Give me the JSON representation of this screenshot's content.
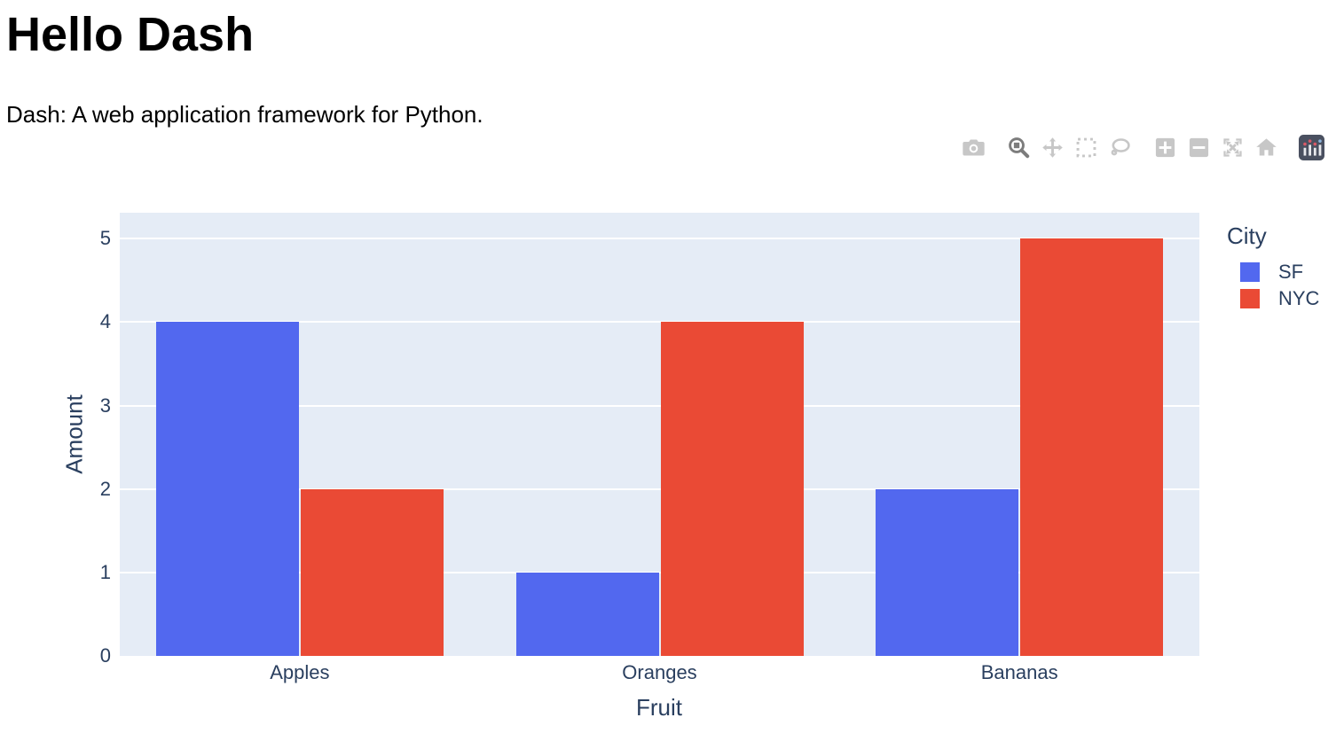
{
  "page": {
    "title": "Hello Dash",
    "subtitle": "Dash: A web application framework for Python."
  },
  "modebar": {
    "buttons": [
      {
        "id": "download-plot",
        "icon": "camera-icon",
        "group": 0,
        "active": false
      },
      {
        "id": "zoom",
        "icon": "zoom-icon",
        "group": 1,
        "active": true
      },
      {
        "id": "pan",
        "icon": "pan-icon",
        "group": 1,
        "active": false
      },
      {
        "id": "box-select",
        "icon": "box-select-icon",
        "group": 1,
        "active": false
      },
      {
        "id": "lasso-select",
        "icon": "lasso-icon",
        "group": 1,
        "active": false
      },
      {
        "id": "zoom-in",
        "icon": "zoom-in-icon",
        "group": 2,
        "active": false
      },
      {
        "id": "zoom-out",
        "icon": "zoom-out-icon",
        "group": 2,
        "active": false
      },
      {
        "id": "autoscale",
        "icon": "autoscale-icon",
        "group": 2,
        "active": false
      },
      {
        "id": "reset-axes",
        "icon": "home-icon",
        "group": 2,
        "active": false
      },
      {
        "id": "plotly-logo",
        "icon": "plotly-logo-icon",
        "group": 3,
        "active": false
      }
    ]
  },
  "chart_data": {
    "type": "bar",
    "barmode": "group",
    "title": "",
    "xlabel": "Fruit",
    "ylabel": "Amount",
    "categories": [
      "Apples",
      "Oranges",
      "Bananas"
    ],
    "series": [
      {
        "name": "SF",
        "color": "#5268ef",
        "values": [
          4,
          1,
          2
        ]
      },
      {
        "name": "NYC",
        "color": "#ea4a35",
        "values": [
          2,
          4,
          5
        ]
      }
    ],
    "yticks": [
      0,
      1,
      2,
      3,
      4,
      5
    ],
    "ylim": [
      0,
      5.31
    ],
    "grid": true,
    "legend_title": "City",
    "legend_position": "right",
    "plot_bgcolor": "#e5ecf6",
    "grid_color": "#ffffff",
    "axis_text_color": "#2a3f5f"
  }
}
